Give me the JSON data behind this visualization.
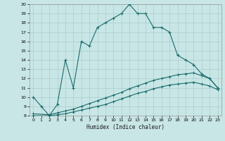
{
  "xlabel": "Humidex (Indice chaleur)",
  "xlim": [
    -0.5,
    23.5
  ],
  "ylim": [
    8,
    20
  ],
  "yticks": [
    8,
    9,
    10,
    11,
    12,
    13,
    14,
    15,
    16,
    17,
    18,
    19,
    20
  ],
  "xticks": [
    0,
    1,
    2,
    3,
    4,
    5,
    6,
    7,
    8,
    9,
    10,
    11,
    12,
    13,
    14,
    15,
    16,
    17,
    18,
    19,
    20,
    21,
    22,
    23
  ],
  "bg_color": "#c8e6e6",
  "line_color": "#1a6b6b",
  "grid_color": "#b0d0d0",
  "line1_x": [
    0,
    1,
    2,
    3,
    4,
    5,
    6,
    7,
    8,
    9,
    10,
    11,
    12,
    13,
    14,
    15,
    16,
    17,
    18,
    19,
    20,
    21,
    22,
    23
  ],
  "line1_y": [
    10.0,
    9.0,
    8.0,
    9.2,
    14.0,
    11.0,
    16.0,
    15.5,
    17.5,
    18.0,
    18.5,
    19.0,
    20.0,
    19.0,
    19.0,
    17.5,
    17.5,
    17.0,
    14.5,
    14.0,
    13.5,
    12.5,
    12.0,
    11.0
  ],
  "line2_x": [
    0,
    2,
    3,
    4,
    5,
    6,
    7,
    8,
    9,
    10,
    11,
    12,
    13,
    14,
    15,
    16,
    17,
    18,
    19,
    20,
    21,
    22,
    23
  ],
  "line2_y": [
    8.2,
    8.1,
    8.3,
    8.5,
    8.7,
    9.0,
    9.3,
    9.6,
    9.9,
    10.2,
    10.5,
    10.9,
    11.2,
    11.5,
    11.8,
    12.0,
    12.2,
    12.4,
    12.5,
    12.6,
    12.3,
    12.0,
    11.0
  ],
  "line3_x": [
    0,
    2,
    3,
    4,
    5,
    6,
    7,
    8,
    9,
    10,
    11,
    12,
    13,
    14,
    15,
    16,
    17,
    18,
    19,
    20,
    21,
    22,
    23
  ],
  "line3_y": [
    8.0,
    8.0,
    8.1,
    8.2,
    8.4,
    8.6,
    8.8,
    9.0,
    9.2,
    9.5,
    9.8,
    10.1,
    10.4,
    10.6,
    10.9,
    11.1,
    11.3,
    11.4,
    11.5,
    11.6,
    11.4,
    11.2,
    10.8
  ]
}
